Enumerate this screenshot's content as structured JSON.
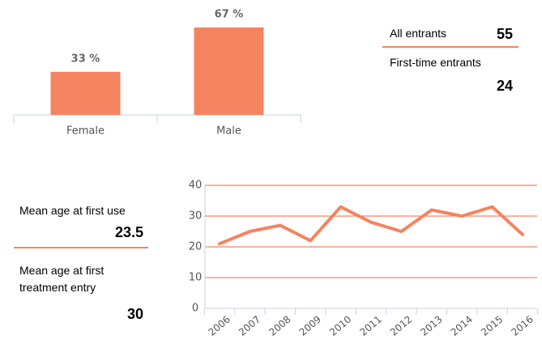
{
  "chart_data": [
    {
      "type": "bar",
      "categories": [
        "Female",
        "Male"
      ],
      "values": [
        33,
        67
      ],
      "value_labels": [
        "33 %",
        "67 %"
      ],
      "color": "#f4845f"
    },
    {
      "type": "line",
      "x": [
        2006,
        2007,
        2008,
        2009,
        2010,
        2011,
        2012,
        2013,
        2014,
        2015,
        2016
      ],
      "values": [
        21,
        25,
        27,
        22,
        33,
        28,
        25,
        32,
        30,
        33,
        24
      ],
      "color": "#f4845f",
      "ylim": [
        0,
        40
      ],
      "yticks": [
        0,
        10,
        20,
        30,
        40
      ],
      "grid": true
    }
  ],
  "stats": {
    "entrants": [
      {
        "label": "All entrants",
        "value": "55"
      },
      {
        "label": "First-time entrants",
        "value": "24"
      }
    ],
    "ages": [
      {
        "label": "Mean age at first use",
        "value": "23.5"
      },
      {
        "label": "Mean age at first treatment entry",
        "value": "30"
      }
    ]
  }
}
